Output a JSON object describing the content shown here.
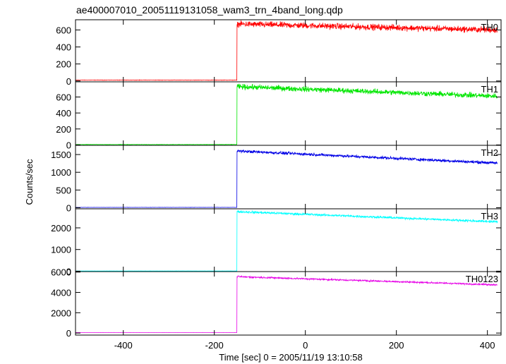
{
  "chart_data": {
    "type": "line",
    "title": "ae400007010_20051119131058_wam3_trn_4band_long.qdp",
    "xlabel": "Time [sec] 0 = 2005/11/19 13:10:58",
    "ylabel": "Counts/sec",
    "xlim": [
      -505,
      430
    ],
    "x_ticks": [
      -400,
      -200,
      0,
      200,
      400
    ],
    "grid": false,
    "trigger_time": -150,
    "series": [
      {
        "name": "TH0",
        "color": "#ff0000",
        "ylim": [
          -10,
          720
        ],
        "y_ticks": [
          0,
          200,
          400,
          600
        ],
        "pre_level": 10,
        "post_start": 670,
        "post_end": 600,
        "noise": 30
      },
      {
        "name": "TH1",
        "color": "#00e600",
        "ylim": [
          -5,
          790
        ],
        "y_ticks": [
          0,
          200,
          400,
          600
        ],
        "pre_level": 5,
        "post_start": 730,
        "post_end": 610,
        "noise": 28
      },
      {
        "name": "TH2",
        "color": "#0000e6",
        "ylim": [
          -30,
          1760
        ],
        "y_ticks": [
          0,
          500,
          1000,
          1500
        ],
        "pre_level": 10,
        "post_start": 1600,
        "post_end": 1260,
        "noise": 35
      },
      {
        "name": "TH3",
        "color": "#00ffff",
        "ylim": [
          -20,
          2880
        ],
        "y_ticks": [
          0,
          1000,
          2000
        ],
        "pre_level": 10,
        "post_start": 2750,
        "post_end": 2280,
        "noise": 45
      },
      {
        "name": "TH0123",
        "color": "#e600e6",
        "ylim": [
          -200,
          6050
        ],
        "y_ticks": [
          0,
          2000,
          4000,
          6000
        ],
        "pre_level": 50,
        "post_start": 5550,
        "post_end": 4750,
        "noise": 70
      }
    ]
  }
}
